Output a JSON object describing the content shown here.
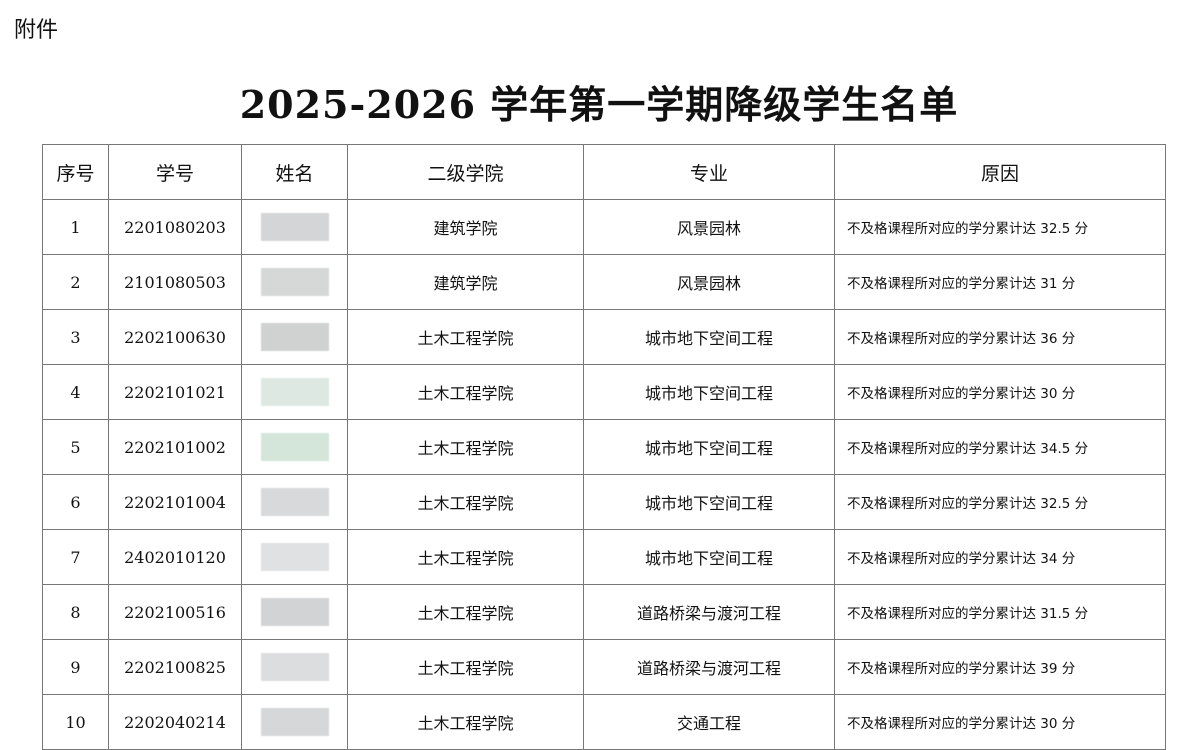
{
  "attachment_label": "附件",
  "title": "2025-2026 学年第一学期降级学生名单",
  "table": {
    "headers": [
      "序号",
      "学号",
      "姓名",
      "二级学院",
      "专业",
      "原因"
    ],
    "rows": [
      {
        "no": "1",
        "id": "2201080203",
        "name_color": "#d3d5d6",
        "college": "建筑学院",
        "major": "风景园林",
        "reason": "不及格课程所对应的学分累计达 32.5 分"
      },
      {
        "no": "2",
        "id": "2101080503",
        "name_color": "#d6d8d8",
        "college": "建筑学院",
        "major": "风景园林",
        "reason": "不及格课程所对应的学分累计达 31 分"
      },
      {
        "no": "3",
        "id": "2202100630",
        "name_color": "#d0d2d2",
        "college": "土木工程学院",
        "major": "城市地下空间工程",
        "reason": "不及格课程所对应的学分累计达 36 分"
      },
      {
        "no": "4",
        "id": "2202101021",
        "name_color": "#dde8e2",
        "college": "土木工程学院",
        "major": "城市地下空间工程",
        "reason": "不及格课程所对应的学分累计达 30 分"
      },
      {
        "no": "5",
        "id": "2202101002",
        "name_color": "#d4e6da",
        "college": "土木工程学院",
        "major": "城市地下空间工程",
        "reason": "不及格课程所对应的学分累计达 34.5 分"
      },
      {
        "no": "6",
        "id": "2202101004",
        "name_color": "#d8d9db",
        "college": "土木工程学院",
        "major": "城市地下空间工程",
        "reason": "不及格课程所对应的学分累计达 32.5 分"
      },
      {
        "no": "7",
        "id": "2402010120",
        "name_color": "#e0e1e2",
        "college": "土木工程学院",
        "major": "城市地下空间工程",
        "reason": "不及格课程所对应的学分累计达 34 分"
      },
      {
        "no": "8",
        "id": "2202100516",
        "name_color": "#d2d3d5",
        "college": "土木工程学院",
        "major": "道路桥梁与渡河工程",
        "reason": "不及格课程所对应的学分累计达 31.5 分"
      },
      {
        "no": "9",
        "id": "2202100825",
        "name_color": "#dcdddf",
        "college": "土木工程学院",
        "major": "道路桥梁与渡河工程",
        "reason": "不及格课程所对应的学分累计达 39 分"
      },
      {
        "no": "10",
        "id": "2202040214",
        "name_color": "#d6d7d8",
        "college": "土木工程学院",
        "major": "交通工程",
        "reason": "不及格课程所对应的学分累计达 30 分"
      }
    ]
  }
}
